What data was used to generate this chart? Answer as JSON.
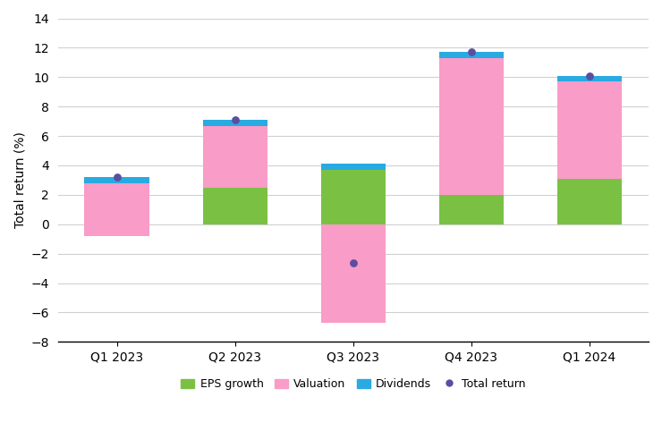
{
  "categories": [
    "Q1 2023",
    "Q2 2023",
    "Q3 2023",
    "Q4 2023",
    "Q1 2024"
  ],
  "eps_growth": [
    -0.8,
    2.5,
    3.7,
    2.0,
    3.1
  ],
  "valuation": [
    3.6,
    4.2,
    -6.7,
    9.3,
    6.6
  ],
  "dividends": [
    0.4,
    0.4,
    0.4,
    0.4,
    0.4
  ],
  "total_return": [
    3.2,
    7.1,
    -2.6,
    11.7,
    10.1
  ],
  "eps_color": "#7ac143",
  "val_color": "#f99cc8",
  "div_color": "#29aae1",
  "tr_color": "#5b4ea0",
  "ylim": [
    -8,
    14
  ],
  "yticks": [
    -8,
    -6,
    -4,
    -2,
    0,
    2,
    4,
    6,
    8,
    10,
    12,
    14
  ],
  "ylabel": "Total return (%)",
  "legend_labels": [
    "EPS growth",
    "Valuation",
    "Dividends",
    "Total return"
  ],
  "bar_width": 0.55,
  "background_color": "#ffffff",
  "grid_color": "#d0d0d0"
}
